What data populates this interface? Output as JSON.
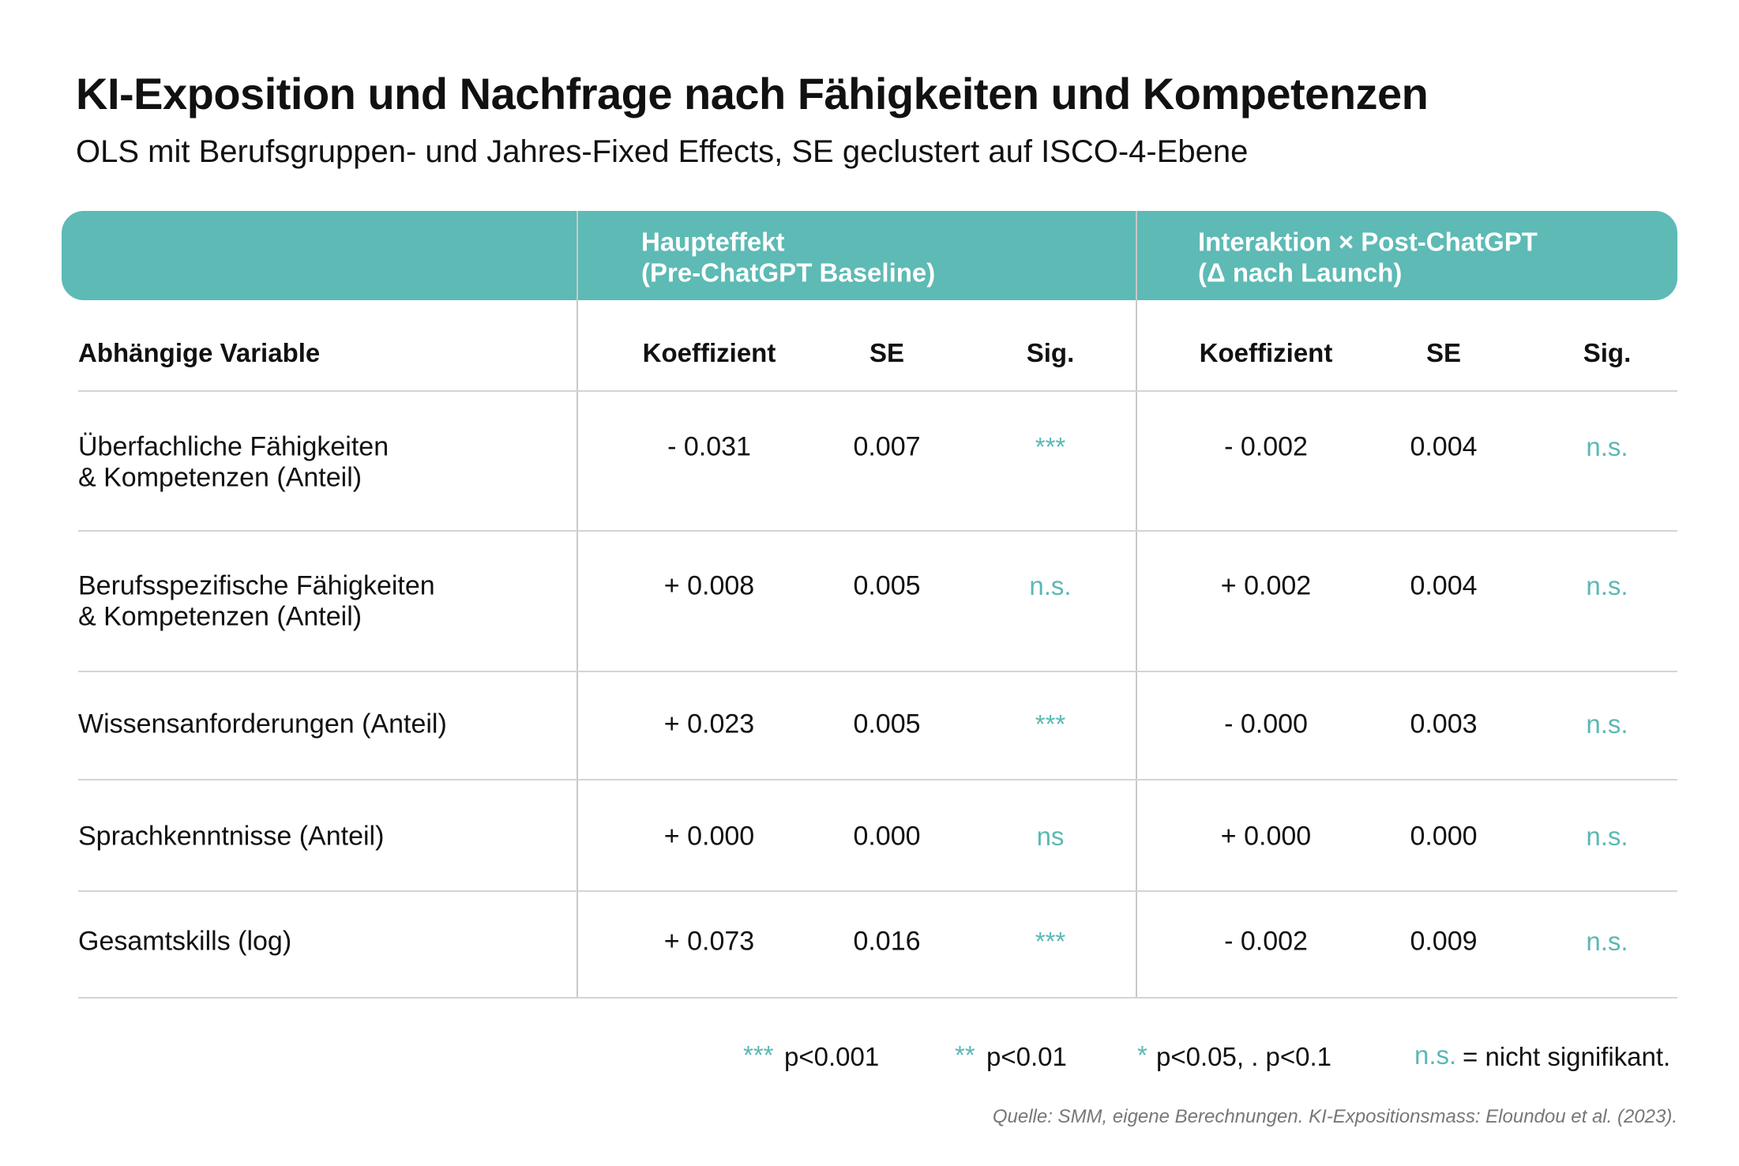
{
  "header": {
    "title": "KI-Exposition und Nachfrage nach Fähigkeiten und Kompetenzen",
    "subtitle": "OLS mit Berufsgruppen- und Jahres-Fixed Effects, SE geclustert auf ISCO-4-Ebene"
  },
  "table": {
    "groups": [
      [
        "Haupteffekt",
        "(Pre-ChatGPT Baseline)"
      ],
      [
        "Interaktion × Post-ChatGPT",
        "(Δ nach Launch)"
      ]
    ],
    "columns": [
      "Abhängige Variable",
      "Koeffizient",
      "SE",
      "Sig.",
      "Koeffizient",
      "SE",
      "Sig."
    ],
    "rows": [
      {
        "label": [
          "Überfachliche Fähigkeiten",
          "& Kompetenzen (Anteil)"
        ],
        "cells": [
          "- 0.031",
          "0.007",
          "***",
          "- 0.002",
          "0.004",
          "n.s."
        ]
      },
      {
        "label": [
          "Berufsspezifische Fähigkeiten",
          "& Kompetenzen (Anteil)"
        ],
        "cells": [
          "+ 0.008",
          "0.005",
          "n.s.",
          "+ 0.002",
          "0.004",
          "n.s."
        ]
      },
      {
        "label": [
          "Wissensanforderungen (Anteil)"
        ],
        "cells": [
          "+ 0.023",
          "0.005",
          "***",
          "- 0.000",
          "0.003",
          "n.s."
        ]
      },
      {
        "label": [
          "Sprachkenntnisse (Anteil)"
        ],
        "cells": [
          "+ 0.000",
          "0.000",
          "ns",
          "+ 0.000",
          "0.000",
          "n.s."
        ]
      },
      {
        "label": [
          "Gesamtskills (log)"
        ],
        "cells": [
          "+ 0.073",
          "0.016",
          "***",
          "- 0.002",
          "0.009",
          "n.s."
        ]
      }
    ]
  },
  "legend": [
    {
      "symbol": "***",
      "text": "p<0.001"
    },
    {
      "symbol": "**",
      "text": "p<0.01"
    },
    {
      "symbol": "*",
      "text": "p<0.05, . p<0.1"
    },
    {
      "symbol": "n.s.",
      "text": "= nicht signifikant."
    }
  ],
  "source": "Quelle: SMM, eigene Berechnungen. KI-Expositionsmass: Eloundou et al. (2023)."
}
